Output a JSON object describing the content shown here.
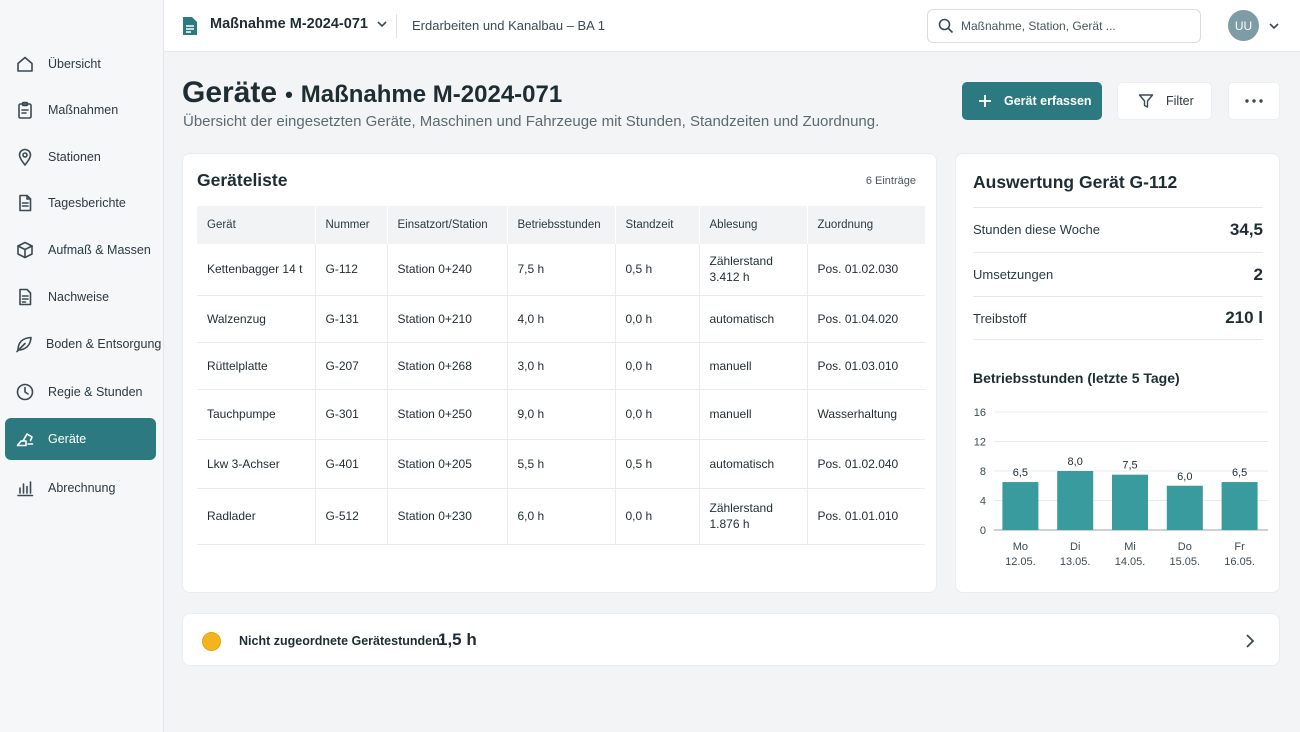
{
  "sidebar": {
    "items": [
      {
        "label": "Übersicht",
        "icon": "home-icon"
      },
      {
        "label": "Maßnahmen",
        "icon": "clipboard-icon"
      },
      {
        "label": "Stationen",
        "icon": "map-pin-icon"
      },
      {
        "label": "Tagesberichte",
        "icon": "document-icon"
      },
      {
        "label": "Aufmaß & Massen",
        "icon": "cube-icon"
      },
      {
        "label": "Nachweise",
        "icon": "file-icon"
      },
      {
        "label": "Boden & Entsorgung",
        "icon": "leaf-icon"
      },
      {
        "label": "Regie & Stunden",
        "icon": "clock-icon"
      },
      {
        "label": "Geräte",
        "icon": "excavator-icon"
      },
      {
        "label": "Abrechnung",
        "icon": "bar-chart-icon"
      }
    ],
    "active_index": 8
  },
  "topbar": {
    "measure": "Maßnahme M-2024-071",
    "project": "Erdarbeiten und Kanalbau – BA 1",
    "search_placeholder": "Maßnahme, Station, Gerät ...",
    "user_initials": "UU"
  },
  "header": {
    "title": "Geräte",
    "separator": "•",
    "title_measure": "Maßnahme M-2024-071",
    "subtitle": "Übersicht der eingesetzten Geräte, Maschinen und Fahrzeuge mit Stunden, Standzeiten und Zuordnung.",
    "add_label": "Gerät erfassen",
    "filter_label": "Filter"
  },
  "list": {
    "title": "Geräteliste",
    "count": "6 Einträge",
    "columns": [
      "Gerät",
      "Nummer",
      "Einsatzort/Station",
      "Betriebsstunden",
      "Standzeit",
      "Ablesung",
      "Zuordnung"
    ],
    "rows": [
      {
        "geraet": "Kettenbagger 14 t",
        "nummer": "G-112",
        "station": "Station 0+240",
        "stunden": "7,5 h",
        "standzeit": "0,5 h",
        "ablesung": "Zählerstand",
        "ablesung_wert": "3.412 h",
        "zuordnung": "Pos. 01.02.030"
      },
      {
        "geraet": "Walzenzug",
        "nummer": "G-131",
        "station": "Station 0+210",
        "stunden": "4,0 h",
        "standzeit": "0,0 h",
        "ablesung": "automatisch",
        "ablesung_wert": "",
        "zuordnung": "Pos. 01.04.020"
      },
      {
        "geraet": "Rüttelplatte",
        "nummer": "G-207",
        "station": "Station 0+268",
        "stunden": "3,0 h",
        "standzeit": "0,0 h",
        "ablesung": "manuell",
        "ablesung_wert": "",
        "zuordnung": "Pos. 01.03.010"
      },
      {
        "geraet": "Tauchpumpe",
        "nummer": "G-301",
        "station": "Station 0+250",
        "stunden": "9,0 h",
        "standzeit": "0,0 h",
        "ablesung": "manuell",
        "ablesung_wert": "",
        "zuordnung": "Wasserhaltung"
      },
      {
        "geraet": "Lkw 3-Achser",
        "nummer": "G-401",
        "station": "Station 0+205",
        "stunden": "5,5 h",
        "standzeit": "0,5 h",
        "ablesung": "automatisch",
        "ablesung_wert": "",
        "zuordnung": "Pos. 01.02.040"
      },
      {
        "geraet": "Radlader",
        "nummer": "G-512",
        "station": "Station 0+230",
        "stunden": "6,0 h",
        "standzeit": "0,0 h",
        "ablesung": "Zählerstand",
        "ablesung_wert": "1.876 h",
        "zuordnung": "Pos. 01.01.010"
      }
    ]
  },
  "detail": {
    "title": "Auswertung Gerät G-112",
    "stats": [
      {
        "label": "Stunden diese Woche",
        "value": "34,5"
      },
      {
        "label": "Umsetzungen",
        "value": "2"
      },
      {
        "label": "Treibstoff",
        "value": "210 l"
      }
    ],
    "chart_title": "Betriebsstunden (letzte 5 Tage)"
  },
  "chart_data": {
    "type": "bar",
    "title": "Betriebsstunden (letzte 5 Tage)",
    "categories": [
      [
        "Mo",
        "12.05."
      ],
      [
        "Di",
        "13.05."
      ],
      [
        "Mi",
        "14.05."
      ],
      [
        "Do",
        "15.05."
      ],
      [
        "Fr",
        "16.05."
      ]
    ],
    "values": [
      6.5,
      8.0,
      7.5,
      6.0,
      6.5
    ],
    "value_labels": [
      "6,5",
      "8,0",
      "7,5",
      "6,0",
      "6,5"
    ],
    "yticks": [
      0,
      4,
      8,
      12,
      16
    ],
    "ylim": [
      0,
      16
    ],
    "grid": true,
    "bar_color": "#3a9b9e"
  },
  "bottom": {
    "label": "Nicht zugeordnete Gerätestunden:",
    "value": "1,5 h"
  },
  "colors": {
    "accent": "#2c7a80",
    "warning": "#f2b51d"
  }
}
